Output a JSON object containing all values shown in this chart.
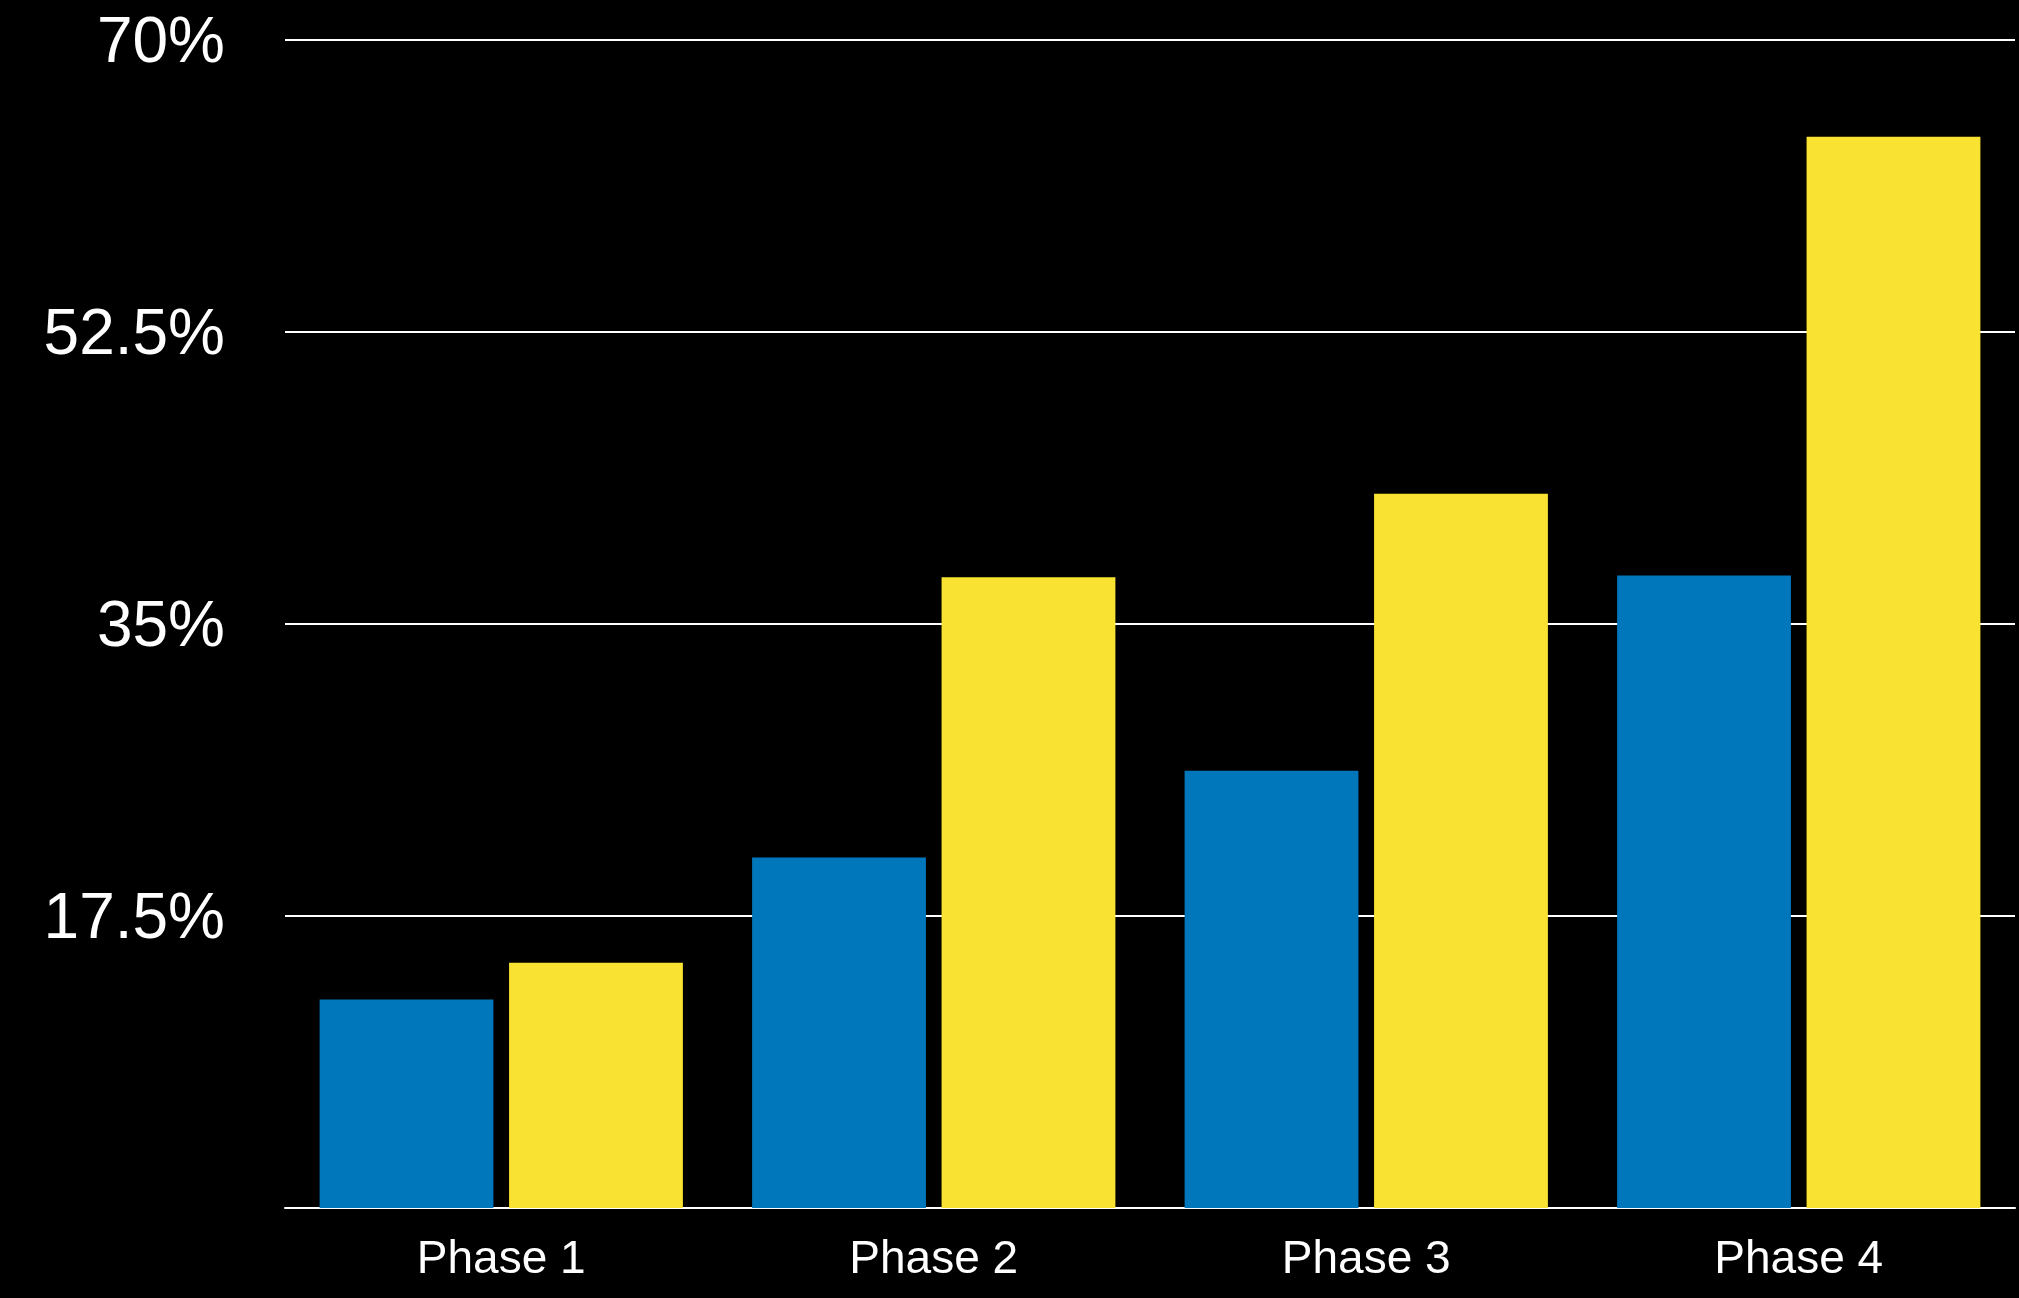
{
  "chart_data": {
    "type": "bar",
    "categories": [
      "Phase 1",
      "Phase 2",
      "Phase 3",
      "Phase 4"
    ],
    "series": [
      {
        "color": "#0076bb",
        "values": [
          12.5,
          21,
          26.2,
          37.9
        ]
      },
      {
        "color": "#f9e231",
        "values": [
          14.7,
          37.8,
          42.8,
          64.2
        ]
      }
    ],
    "ylim": [
      0,
      70
    ],
    "yticks": [
      {
        "value": 0,
        "label": null
      },
      {
        "value": 17.5,
        "label": "17.5%"
      },
      {
        "value": 35,
        "label": "35%"
      },
      {
        "value": 52.5,
        "label": "52.5%"
      },
      {
        "value": 70,
        "label": "70%"
      }
    ],
    "grid": "y"
  }
}
